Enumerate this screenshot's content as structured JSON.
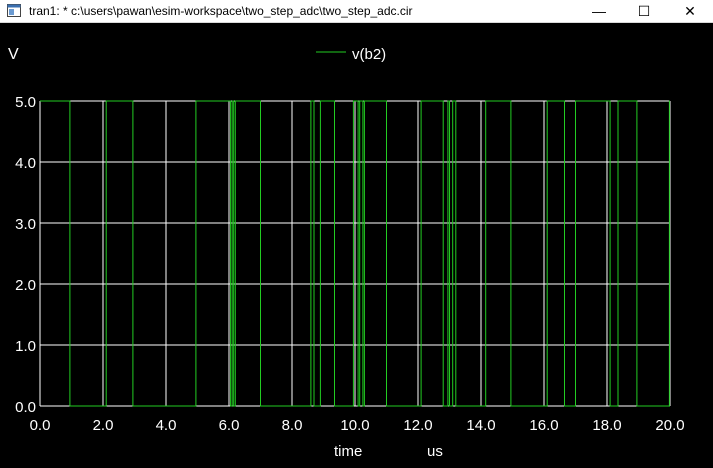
{
  "window": {
    "title": "tran1: * c:\\users\\pawan\\esim-workspace\\two_step_adc\\two_step_adc.cir",
    "minimize_glyph": "—",
    "maximize_glyph": "☐",
    "close_glyph": "✕"
  },
  "chart_data": {
    "type": "line",
    "ylabel": "V",
    "xlabel": "time",
    "xunit": "us",
    "xlim": [
      0,
      20
    ],
    "ylim": [
      0,
      5
    ],
    "xticks": [
      "0.0",
      "2.0",
      "4.0",
      "6.0",
      "8.0",
      "10.0",
      "12.0",
      "14.0",
      "16.0",
      "18.0",
      "20.0"
    ],
    "yticks": [
      "0.0",
      "1.0",
      "2.0",
      "3.0",
      "4.0",
      "5.0"
    ],
    "grid": true,
    "legend_position": "top-center",
    "series": [
      {
        "name": "v(b2)",
        "color": "#22cc22",
        "high": 5,
        "low": 0,
        "high_intervals": [
          [
            0,
            0.95
          ],
          [
            2.1,
            2.95
          ],
          [
            4.95,
            6.05
          ],
          [
            6.1,
            6.15
          ],
          [
            6.2,
            7.0
          ],
          [
            8.6,
            8.7
          ],
          [
            8.9,
            9.35
          ],
          [
            9.95,
            10.1
          ],
          [
            10.15,
            10.25
          ],
          [
            10.3,
            11.0
          ],
          [
            12.1,
            12.8
          ],
          [
            12.95,
            13.0
          ],
          [
            13.1,
            13.2
          ],
          [
            14.15,
            14.95
          ],
          [
            16.1,
            16.65
          ],
          [
            17.0,
            18.1
          ],
          [
            18.35,
            18.95
          ]
        ],
        "end_value": 5
      }
    ]
  }
}
